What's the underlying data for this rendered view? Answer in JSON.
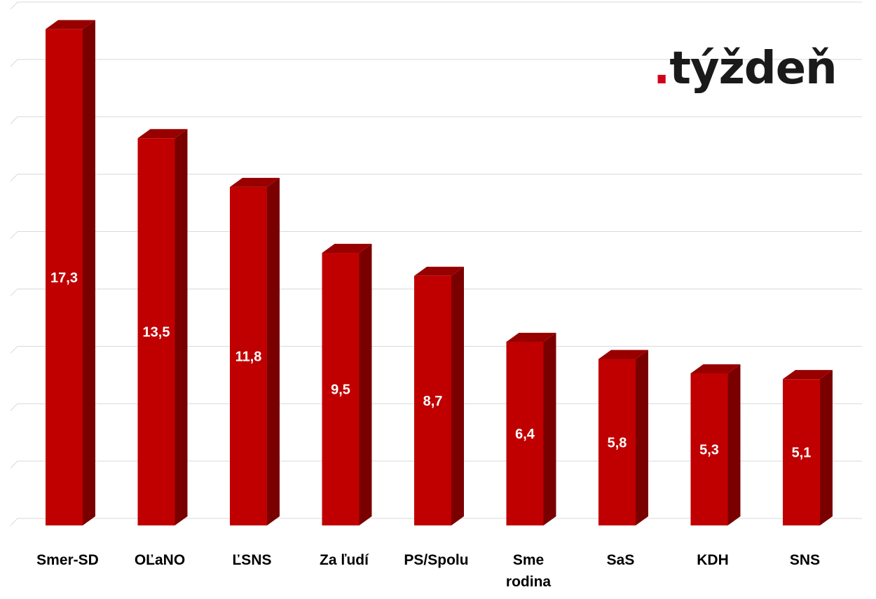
{
  "logo": {
    "dot": ".",
    "word": "týždeň"
  },
  "colors": {
    "bar_front": "#c00000",
    "bar_side": "#7a0000",
    "bar_top": "#980000",
    "grid": "#d9d9d9",
    "value_label": "#ffffff",
    "category_label": "#000000",
    "logo_dot": "#d0021b"
  },
  "chart_data": {
    "type": "bar",
    "style": "3d-column",
    "title": "",
    "xlabel": "",
    "ylabel": "",
    "categories": [
      "Smer-SD",
      "OĽaNO",
      "ĽSNS",
      "Za ľudí",
      "PS/Spolu",
      "Sme rodina",
      "SaS",
      "KDH",
      "SNS"
    ],
    "values": [
      17.3,
      13.5,
      11.8,
      9.5,
      8.7,
      6.4,
      5.8,
      5.3,
      5.1
    ],
    "value_labels": [
      "17,3",
      "13,5",
      "11,8",
      "9,5",
      "8,7",
      "6,4",
      "5,8",
      "5,3",
      "5,1"
    ],
    "ylim": [
      0,
      18
    ],
    "ytick_step": 2,
    "grid": true,
    "legend": "none"
  }
}
